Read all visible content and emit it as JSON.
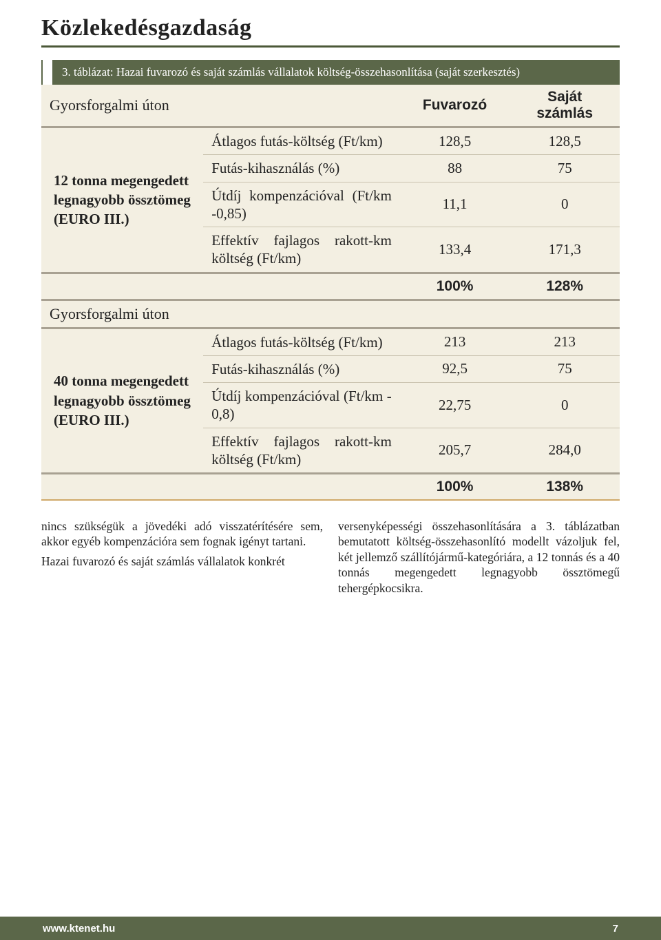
{
  "section_title": "Közlekedésgazdaság",
  "caption": "3. táblázat: Hazai fuvarozó és saját számlás vállalatok költség-összehasonlítása (saját szerkesztés)",
  "table": {
    "background_color": "#f3efe2",
    "border_color": "#a8a192",
    "header": {
      "row_label": "Gyorsforgalmi úton",
      "col1": "Fuvarozó",
      "col2": "Saját számlás"
    },
    "groups": [
      {
        "label": "12 tonna megengedett legnagyobb össztömeg (EURO III.)",
        "rows": [
          {
            "metric": "Átlagos futás-költség (Ft/km)",
            "v1": "128,5",
            "v2": "128,5"
          },
          {
            "metric": "Futás-kihasználás (%)",
            "v1": "88",
            "v2": "75"
          },
          {
            "metric": "Útdíj kompenzációval (Ft/km -0,85)",
            "v1": "11,1",
            "v2": "0"
          },
          {
            "metric": "Effektív fajlagos rakott-km költség (Ft/km)",
            "v1": "133,4",
            "v2": "171,3"
          }
        ],
        "pct": {
          "v1": "100%",
          "v2": "128%"
        },
        "subhead_after": "Gyorsforgalmi úton"
      },
      {
        "label": "40 tonna megengedett legnagyobb össztömeg (EURO III.)",
        "rows": [
          {
            "metric": "Átlagos futás-költség (Ft/km)",
            "v1": "213",
            "v2": "213"
          },
          {
            "metric": "Futás-kihasználás (%)",
            "v1": "92,5",
            "v2": "75"
          },
          {
            "metric": "Útdíj kompenzációval (Ft/km - 0,8)",
            "v1": "22,75",
            "v2": "0"
          },
          {
            "metric": "Effektív fajlagos rakott-km költség (Ft/km)",
            "v1": "205,7",
            "v2": "284,0"
          }
        ],
        "pct": {
          "v1": "100%",
          "v2": "138%"
        }
      }
    ],
    "col_widths": [
      "28%",
      "34%",
      "19%",
      "19%"
    ]
  },
  "body": {
    "left": "nincs szükségük a jövedéki adó visszatérítésére sem, akkor egyéb kompenzációra sem fognak igényt tartani.\nHazai fuvarozó és saját számlás vállalatok konkrét",
    "right": "versenyképességi összehasonlítására a 3. táblázatban bemutatott költség-összehasonlító modellt vázoljuk fel, két jellemző szállítójármű-kategóriára, a 12 tonnás és a 40 tonnás megengedett legnagyobb össztömegű tehergépkocsikra."
  },
  "footer": {
    "site": "www.ktenet.hu",
    "page": "7",
    "bg": "#5b6749"
  }
}
